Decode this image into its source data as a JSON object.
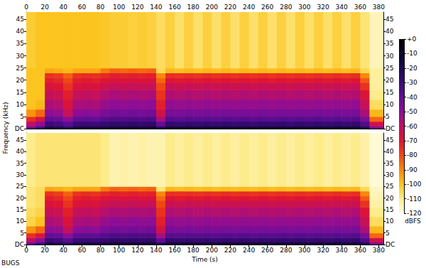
{
  "chart_data": {
    "type": "spectrogram",
    "x_label": "Time (s)",
    "y_label": "Frequency (kHz)",
    "annotation": "BUGS",
    "xlim": [
      0,
      385
    ],
    "xticks": [
      0,
      20,
      40,
      60,
      80,
      100,
      120,
      140,
      160,
      180,
      200,
      220,
      240,
      260,
      280,
      300,
      320,
      340,
      360,
      380
    ],
    "ylim": [
      0,
      48
    ],
    "yticks": [
      {
        "value": 0,
        "label": "DC"
      },
      5,
      10,
      15,
      20,
      25,
      30,
      35,
      40,
      45
    ],
    "time_edges": [
      0,
      10,
      20,
      30,
      40,
      50,
      60,
      70,
      80,
      90,
      100,
      110,
      120,
      130,
      140,
      150,
      160,
      170,
      180,
      190,
      200,
      210,
      220,
      230,
      240,
      250,
      260,
      270,
      280,
      290,
      300,
      310,
      320,
      330,
      340,
      350,
      360,
      370,
      385
    ],
    "freq_edges": [
      0,
      1,
      3,
      5,
      8,
      12,
      16,
      19,
      21,
      23,
      25,
      48
    ],
    "colorbar": {
      "range": [
        -120,
        0
      ],
      "label": "dBFS",
      "ticks": [
        {
          "value": 0,
          "label": "+0"
        },
        -10,
        -20,
        -30,
        -40,
        -50,
        -60,
        -70,
        -80,
        -90,
        -100,
        -110,
        -120
      ]
    },
    "series": [
      {
        "cells": [
          [
            -40,
            -60,
            -75,
            -92,
            -100,
            -100,
            -100,
            -100,
            -100,
            -100,
            -102
          ],
          [
            -30,
            -50,
            -68,
            -85,
            -98,
            -100,
            -100,
            -100,
            -100,
            -100,
            -100
          ],
          [
            -15,
            -30,
            -40,
            -50,
            -56,
            -62,
            -68,
            -72,
            -76,
            -95,
            -100
          ],
          [
            -18,
            -32,
            -42,
            -52,
            -58,
            -64,
            -70,
            -74,
            -78,
            -96,
            -100
          ],
          [
            -22,
            -38,
            -50,
            -62,
            -68,
            -72,
            -76,
            -80,
            -84,
            -98,
            -100
          ],
          [
            -15,
            -30,
            -40,
            -50,
            -56,
            -62,
            -68,
            -72,
            -76,
            -95,
            -100
          ],
          [
            -14,
            -29,
            -39,
            -49,
            -55,
            -61,
            -67,
            -71,
            -75,
            -95,
            -100
          ],
          [
            -15,
            -30,
            -40,
            -50,
            -56,
            -62,
            -68,
            -72,
            -76,
            -95,
            -100
          ],
          [
            -14,
            -28,
            -37,
            -46,
            -52,
            -58,
            -64,
            -70,
            -74,
            -88,
            -101
          ],
          [
            -12,
            -26,
            -35,
            -44,
            -50,
            -56,
            -62,
            -68,
            -72,
            -84,
            -102
          ],
          [
            -13,
            -27,
            -36,
            -45,
            -51,
            -57,
            -63,
            -69,
            -73,
            -85,
            -102
          ],
          [
            -12,
            -26,
            -35,
            -44,
            -50,
            -56,
            -62,
            -68,
            -72,
            -84,
            -103
          ],
          [
            -13,
            -27,
            -36,
            -45,
            -51,
            -57,
            -63,
            -69,
            -73,
            -85,
            -102
          ],
          [
            -12,
            -26,
            -35,
            -44,
            -50,
            -56,
            -62,
            -68,
            -72,
            -84,
            -103
          ],
          [
            -20,
            -40,
            -55,
            -65,
            -72,
            -76,
            -80,
            -85,
            -90,
            -105,
            -106
          ],
          [
            -12,
            -27,
            -37,
            -45,
            -51,
            -57,
            -63,
            -70,
            -75,
            -98,
            -103
          ],
          [
            -13,
            -28,
            -38,
            -46,
            -52,
            -58,
            -64,
            -71,
            -76,
            -99,
            -107
          ],
          [
            -12,
            -27,
            -37,
            -45,
            -51,
            -57,
            -63,
            -70,
            -75,
            -98,
            -103
          ],
          [
            -13,
            -28,
            -38,
            -46,
            -52,
            -58,
            -64,
            -71,
            -76,
            -99,
            -107
          ],
          [
            -12,
            -27,
            -37,
            -45,
            -51,
            -57,
            -63,
            -70,
            -75,
            -98,
            -103
          ],
          [
            -13,
            -28,
            -38,
            -46,
            -52,
            -58,
            -64,
            -71,
            -76,
            -99,
            -107
          ],
          [
            -12,
            -27,
            -37,
            -45,
            -51,
            -57,
            -63,
            -70,
            -75,
            -98,
            -103
          ],
          [
            -13,
            -28,
            -38,
            -46,
            -52,
            -58,
            -64,
            -71,
            -76,
            -99,
            -107
          ],
          [
            -12,
            -27,
            -37,
            -45,
            -51,
            -57,
            -63,
            -70,
            -75,
            -98,
            -103
          ],
          [
            -13,
            -28,
            -38,
            -46,
            -52,
            -58,
            -64,
            -71,
            -76,
            -99,
            -107
          ],
          [
            -12,
            -27,
            -37,
            -45,
            -51,
            -57,
            -63,
            -70,
            -75,
            -98,
            -103
          ],
          [
            -13,
            -28,
            -38,
            -46,
            -52,
            -58,
            -64,
            -71,
            -76,
            -99,
            -107
          ],
          [
            -12,
            -27,
            -37,
            -45,
            -51,
            -57,
            -63,
            -70,
            -75,
            -98,
            -103
          ],
          [
            -13,
            -28,
            -38,
            -46,
            -52,
            -58,
            -64,
            -71,
            -76,
            -99,
            -107
          ],
          [
            -12,
            -27,
            -37,
            -45,
            -51,
            -57,
            -63,
            -70,
            -75,
            -98,
            -103
          ],
          [
            -13,
            -28,
            -38,
            -46,
            -52,
            -58,
            -64,
            -71,
            -76,
            -99,
            -107
          ],
          [
            -12,
            -27,
            -37,
            -45,
            -51,
            -57,
            -63,
            -70,
            -75,
            -98,
            -103
          ],
          [
            -13,
            -28,
            -38,
            -46,
            -52,
            -58,
            -64,
            -71,
            -76,
            -99,
            -107
          ],
          [
            -12,
            -27,
            -37,
            -45,
            -51,
            -57,
            -63,
            -70,
            -75,
            -98,
            -103
          ],
          [
            -13,
            -28,
            -38,
            -46,
            -52,
            -58,
            -64,
            -71,
            -76,
            -99,
            -107
          ],
          [
            -12,
            -27,
            -37,
            -45,
            -51,
            -57,
            -63,
            -70,
            -75,
            -98,
            -103
          ],
          [
            -20,
            -36,
            -46,
            -56,
            -63,
            -69,
            -76,
            -83,
            -90,
            -105,
            -108
          ],
          [
            -45,
            -65,
            -85,
            -98,
            -106,
            -110,
            -112,
            -112,
            -112,
            -112,
            -115
          ]
        ]
      },
      {
        "cells": [
          [
            -40,
            -60,
            -75,
            -92,
            -104,
            -106,
            -108,
            -108,
            -108,
            -108,
            -110
          ],
          [
            -30,
            -50,
            -68,
            -85,
            -100,
            -104,
            -106,
            -106,
            -106,
            -106,
            -108
          ],
          [
            -15,
            -30,
            -40,
            -50,
            -56,
            -62,
            -68,
            -72,
            -76,
            -95,
            -108
          ],
          [
            -18,
            -32,
            -42,
            -52,
            -58,
            -64,
            -70,
            -74,
            -78,
            -96,
            -108
          ],
          [
            -22,
            -38,
            -50,
            -62,
            -68,
            -72,
            -76,
            -80,
            -84,
            -98,
            -108
          ],
          [
            -15,
            -30,
            -40,
            -50,
            -56,
            -62,
            -68,
            -72,
            -76,
            -95,
            -108
          ],
          [
            -14,
            -29,
            -39,
            -49,
            -55,
            -61,
            -67,
            -71,
            -75,
            -95,
            -108
          ],
          [
            -15,
            -30,
            -40,
            -50,
            -56,
            -62,
            -68,
            -72,
            -76,
            -95,
            -108
          ],
          [
            -14,
            -28,
            -37,
            -46,
            -52,
            -58,
            -64,
            -70,
            -74,
            -88,
            -110
          ],
          [
            -12,
            -26,
            -35,
            -44,
            -50,
            -56,
            -62,
            -68,
            -72,
            -84,
            -114
          ],
          [
            -13,
            -27,
            -36,
            -45,
            -51,
            -57,
            -63,
            -69,
            -73,
            -85,
            -113
          ],
          [
            -12,
            -26,
            -35,
            -44,
            -50,
            -56,
            -62,
            -68,
            -72,
            -84,
            -114
          ],
          [
            -13,
            -27,
            -36,
            -45,
            -51,
            -57,
            -63,
            -69,
            -73,
            -85,
            -113
          ],
          [
            -12,
            -26,
            -35,
            -44,
            -50,
            -56,
            -62,
            -68,
            -72,
            -84,
            -114
          ],
          [
            -20,
            -40,
            -55,
            -65,
            -72,
            -76,
            -80,
            -85,
            -90,
            -108,
            -114
          ],
          [
            -12,
            -27,
            -37,
            -45,
            -51,
            -57,
            -63,
            -70,
            -75,
            -98,
            -110
          ],
          [
            -13,
            -28,
            -38,
            -46,
            -52,
            -58,
            -64,
            -71,
            -76,
            -99,
            -112
          ],
          [
            -12,
            -27,
            -37,
            -45,
            -51,
            -57,
            -63,
            -70,
            -75,
            -98,
            -110
          ],
          [
            -13,
            -28,
            -38,
            -46,
            -52,
            -58,
            -64,
            -71,
            -76,
            -99,
            -112
          ],
          [
            -12,
            -27,
            -37,
            -45,
            -51,
            -57,
            -63,
            -70,
            -75,
            -98,
            -110
          ],
          [
            -13,
            -28,
            -38,
            -46,
            -52,
            -58,
            -64,
            -71,
            -76,
            -99,
            -112
          ],
          [
            -12,
            -27,
            -37,
            -45,
            -51,
            -57,
            -63,
            -70,
            -75,
            -98,
            -110
          ],
          [
            -13,
            -28,
            -38,
            -46,
            -52,
            -58,
            -64,
            -71,
            -76,
            -99,
            -112
          ],
          [
            -12,
            -27,
            -37,
            -45,
            -51,
            -57,
            -63,
            -70,
            -75,
            -98,
            -110
          ],
          [
            -13,
            -28,
            -38,
            -46,
            -52,
            -58,
            -64,
            -71,
            -76,
            -99,
            -112
          ],
          [
            -12,
            -27,
            -37,
            -45,
            -51,
            -57,
            -63,
            -70,
            -75,
            -98,
            -110
          ],
          [
            -13,
            -28,
            -38,
            -46,
            -52,
            -58,
            -64,
            -71,
            -76,
            -99,
            -112
          ],
          [
            -12,
            -27,
            -37,
            -45,
            -51,
            -57,
            -63,
            -70,
            -75,
            -98,
            -110
          ],
          [
            -13,
            -28,
            -38,
            -46,
            -52,
            -58,
            -64,
            -71,
            -76,
            -99,
            -112
          ],
          [
            -12,
            -27,
            -37,
            -45,
            -51,
            -57,
            -63,
            -70,
            -75,
            -98,
            -110
          ],
          [
            -13,
            -28,
            -38,
            -46,
            -52,
            -58,
            -64,
            -71,
            -76,
            -99,
            -112
          ],
          [
            -12,
            -27,
            -37,
            -45,
            -51,
            -57,
            -63,
            -70,
            -75,
            -98,
            -110
          ],
          [
            -13,
            -28,
            -38,
            -46,
            -52,
            -58,
            -64,
            -71,
            -76,
            -99,
            -112
          ],
          [
            -12,
            -27,
            -37,
            -45,
            -51,
            -57,
            -63,
            -70,
            -75,
            -98,
            -110
          ],
          [
            -13,
            -28,
            -38,
            -46,
            -52,
            -58,
            -64,
            -71,
            -76,
            -99,
            -112
          ],
          [
            -12,
            -27,
            -37,
            -45,
            -51,
            -57,
            -63,
            -70,
            -75,
            -98,
            -110
          ],
          [
            -20,
            -36,
            -46,
            -56,
            -63,
            -69,
            -76,
            -83,
            -90,
            -105,
            -113
          ],
          [
            -45,
            -65,
            -85,
            -98,
            -106,
            -110,
            -113,
            -114,
            -115,
            -116,
            -118
          ]
        ]
      }
    ]
  }
}
